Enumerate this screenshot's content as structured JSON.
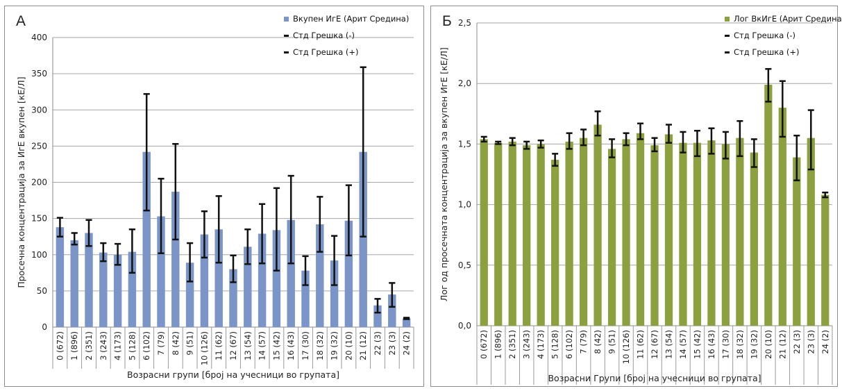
{
  "chart_data": [
    {
      "id": "A",
      "type": "bar",
      "panel_label": "А",
      "ylabel": "Просечна концентрација за ИгЕ вкупен [кЕ/Л]",
      "xlabel": "Возрасни групи [број на учесници во групата]",
      "ylim": [
        0,
        400
      ],
      "yticks": [
        0,
        50,
        100,
        150,
        200,
        250,
        300,
        350,
        400
      ],
      "ytick_labels": [
        "0",
        "50",
        "100",
        "150",
        "200",
        "250",
        "300",
        "350",
        "400"
      ],
      "grid": true,
      "legend_position": "top-right",
      "categories": [
        "0 (672)",
        "1 (896)",
        "2 (351)",
        "3 (243)",
        "4 (173)",
        "5 (128)",
        "6 (102)",
        "7 (79)",
        "8 (42)",
        "9 (51)",
        "10 (126)",
        "11 (62)",
        "12 (67)",
        "13 (54)",
        "14 (57)",
        "15 (42)",
        "16 (43)",
        "17 (30)",
        "18 (32)",
        "19 (32)",
        "20 (10)",
        "21 (12)",
        "22 (3)",
        "23 (3)",
        "24 (2)"
      ],
      "series": [
        {
          "name": "Вкупен ИгЕ (Арит Средина)",
          "color": "#7b95c8",
          "values": [
            138,
            120,
            130,
            103,
            100,
            104,
            242,
            153,
            187,
            89,
            128,
            135,
            80,
            111,
            129,
            134,
            148,
            78,
            142,
            92,
            147,
            242,
            30,
            45,
            12
          ],
          "err_minus": [
            125,
            114,
            112,
            91,
            86,
            75,
            161,
            102,
            121,
            63,
            96,
            89,
            62,
            87,
            88,
            78,
            88,
            58,
            104,
            58,
            99,
            125,
            20,
            28,
            11
          ],
          "err_plus": [
            151,
            130,
            148,
            116,
            115,
            135,
            322,
            205,
            253,
            116,
            160,
            181,
            99,
            135,
            170,
            192,
            209,
            98,
            180,
            126,
            196,
            359,
            39,
            61,
            13
          ]
        }
      ],
      "legend": [
        "Вкупен ИгЕ (Арит Средина)",
        "Стд Грешка (-)",
        "Стд Грешка (+)"
      ]
    },
    {
      "id": "B",
      "type": "bar",
      "panel_label": "Б",
      "ylabel": "Лог од просечната концентрација за вкупен ИгЕ [кЕ/Л]",
      "xlabel": "Возрасни Групи   [број на учесници во групата]",
      "ylim": [
        0,
        2.5
      ],
      "yticks": [
        0,
        0.5,
        1.0,
        1.5,
        2.0,
        2.5
      ],
      "ytick_labels": [
        "0,0",
        "0,5",
        "1,0",
        "1,5",
        "2,0",
        "2,5"
      ],
      "grid": true,
      "legend_position": "top-right",
      "categories": [
        "0 (672)",
        "1 (896)",
        "2 (351)",
        "3 (243)",
        "4 (173)",
        "5 (128)",
        "6 (102)",
        "7 (79)",
        "8 (42)",
        "9 (51)",
        "10 (126)",
        "11 (62)",
        "12 (67)",
        "13 (54)",
        "14 (57)",
        "15 (42)",
        "16 (43)",
        "17 (30)",
        "18 (32)",
        "19 (32)",
        "20 (10)",
        "21 (12)",
        "22 (3)",
        "23 (3)",
        "24 (2)"
      ],
      "series": [
        {
          "name": "Лог ВкИгЕ (Арит Средина)",
          "color": "#8ca040",
          "values": [
            1.54,
            1.51,
            1.52,
            1.49,
            1.5,
            1.37,
            1.52,
            1.55,
            1.66,
            1.46,
            1.54,
            1.59,
            1.49,
            1.58,
            1.51,
            1.51,
            1.53,
            1.5,
            1.55,
            1.43,
            1.99,
            1.8,
            1.39,
            1.55,
            1.08
          ],
          "err_minus": [
            1.52,
            1.5,
            1.49,
            1.46,
            1.47,
            1.32,
            1.46,
            1.49,
            1.57,
            1.39,
            1.49,
            1.54,
            1.44,
            1.51,
            1.43,
            1.4,
            1.42,
            1.38,
            1.4,
            1.31,
            1.85,
            1.56,
            1.2,
            1.29,
            1.06
          ],
          "err_plus": [
            1.56,
            1.52,
            1.55,
            1.52,
            1.53,
            1.42,
            1.59,
            1.62,
            1.77,
            1.54,
            1.59,
            1.67,
            1.55,
            1.66,
            1.6,
            1.61,
            1.63,
            1.6,
            1.69,
            1.54,
            2.12,
            2.02,
            1.57,
            1.78,
            1.1
          ]
        }
      ],
      "legend": [
        "Лог ВкИгЕ (Арит Средина)",
        "Стд Грешка (-)",
        "Стд Грешка (+)"
      ]
    }
  ]
}
